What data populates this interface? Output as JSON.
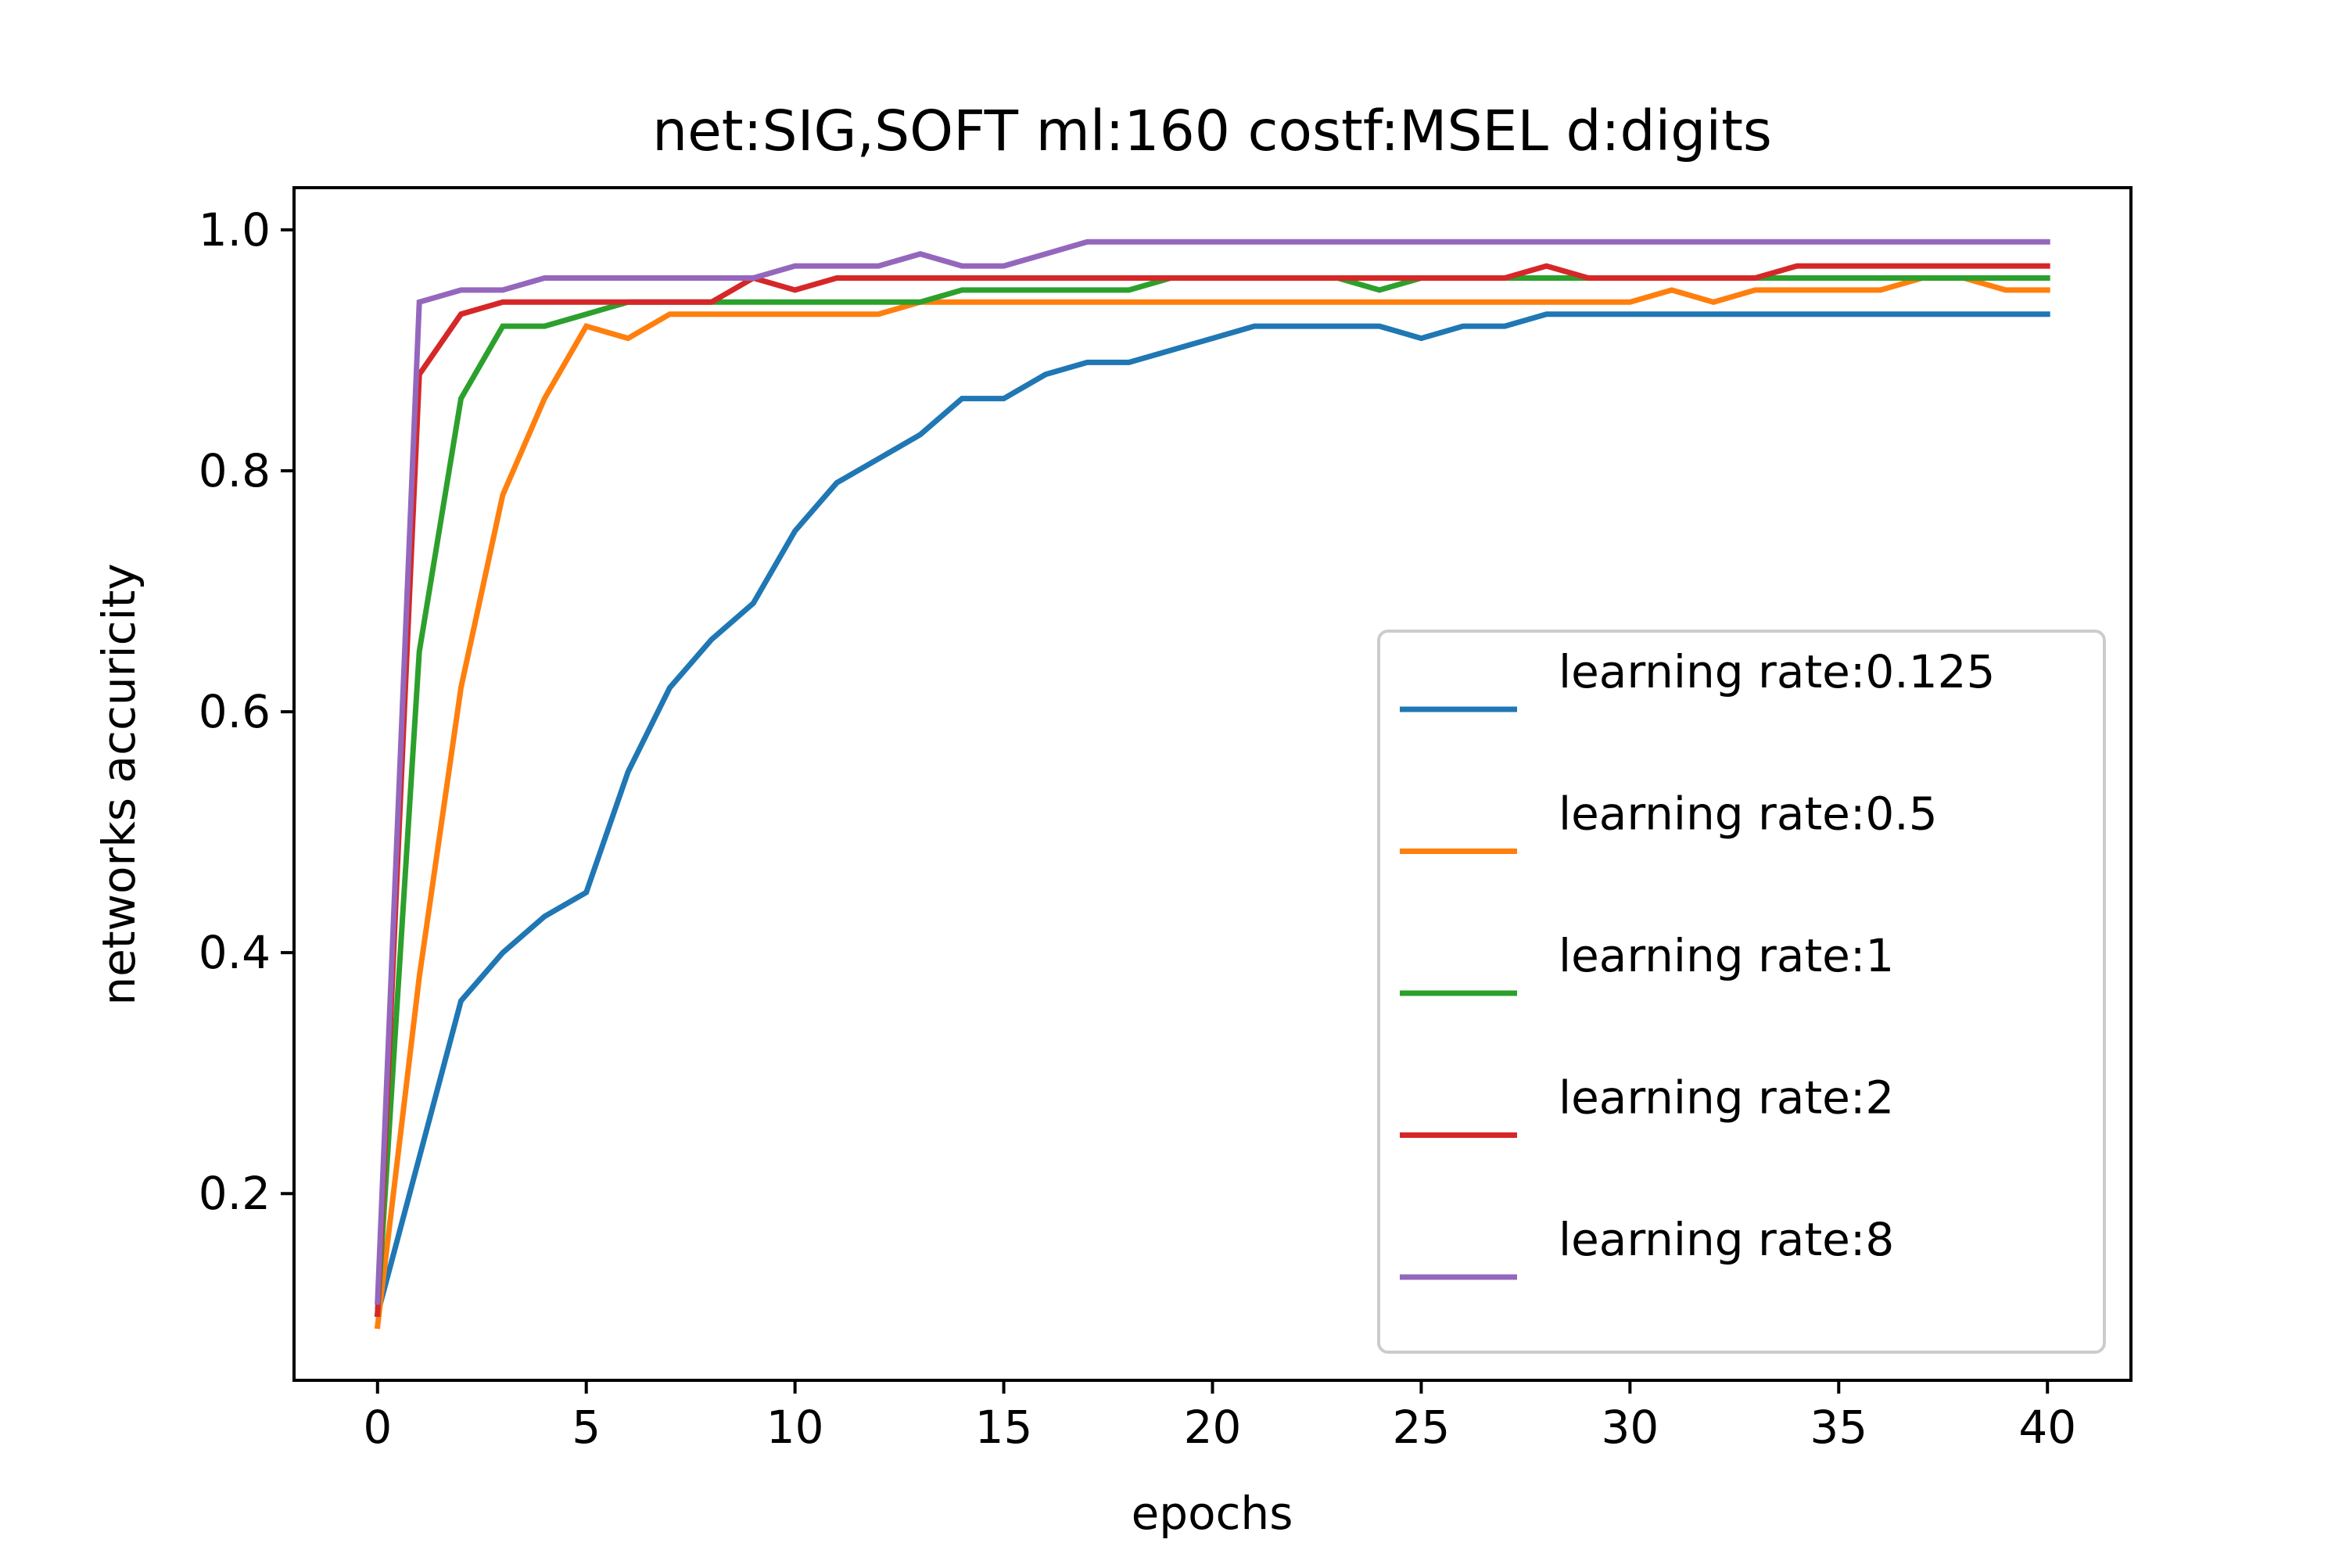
{
  "chart_data": {
    "type": "line",
    "title": "net:SIG,SOFT ml:160 costf:MSEL d:digits",
    "xlabel": "epochs",
    "ylabel": "networks accuricity",
    "xlim": [
      -2,
      42
    ],
    "ylim": [
      0.045,
      1.035
    ],
    "xticks": [
      0,
      5,
      10,
      15,
      20,
      25,
      30,
      35,
      40
    ],
    "yticks": [
      0.2,
      0.4,
      0.6,
      0.8,
      1.0
    ],
    "xtick_labels": [
      "0",
      "5",
      "10",
      "15",
      "20",
      "25",
      "30",
      "35",
      "40"
    ],
    "ytick_labels": [
      "0.2",
      "0.4",
      "0.6",
      "0.8",
      "1.0"
    ],
    "grid": false,
    "legend_position": "lower-right",
    "x": [
      0,
      1,
      2,
      3,
      4,
      5,
      6,
      7,
      8,
      9,
      10,
      11,
      12,
      13,
      14,
      15,
      16,
      17,
      18,
      19,
      20,
      21,
      22,
      23,
      24,
      25,
      26,
      27,
      28,
      29,
      30,
      31,
      32,
      33,
      34,
      35,
      36,
      37,
      38,
      39,
      40
    ],
    "series": [
      {
        "name": "learning rate:0.125",
        "color": "#1f77b4",
        "values": [
          0.1,
          0.23,
          0.36,
          0.4,
          0.43,
          0.45,
          0.55,
          0.62,
          0.66,
          0.69,
          0.75,
          0.79,
          0.81,
          0.83,
          0.86,
          0.86,
          0.88,
          0.89,
          0.89,
          0.9,
          0.91,
          0.92,
          0.92,
          0.92,
          0.92,
          0.91,
          0.92,
          0.92,
          0.93,
          0.93,
          0.93,
          0.93,
          0.93,
          0.93,
          0.93,
          0.93,
          0.93,
          0.93,
          0.93,
          0.93,
          0.93
        ]
      },
      {
        "name": "learning rate:0.5",
        "color": "#ff7f0e",
        "values": [
          0.09,
          0.38,
          0.62,
          0.78,
          0.86,
          0.92,
          0.91,
          0.93,
          0.93,
          0.93,
          0.93,
          0.93,
          0.93,
          0.94,
          0.94,
          0.94,
          0.94,
          0.94,
          0.94,
          0.94,
          0.94,
          0.94,
          0.94,
          0.94,
          0.94,
          0.94,
          0.94,
          0.94,
          0.94,
          0.94,
          0.94,
          0.95,
          0.94,
          0.95,
          0.95,
          0.95,
          0.95,
          0.96,
          0.96,
          0.95,
          0.95
        ]
      },
      {
        "name": "learning rate:1",
        "color": "#2ca02c",
        "values": [
          0.1,
          0.65,
          0.86,
          0.92,
          0.92,
          0.93,
          0.94,
          0.94,
          0.94,
          0.94,
          0.94,
          0.94,
          0.94,
          0.94,
          0.95,
          0.95,
          0.95,
          0.95,
          0.95,
          0.96,
          0.96,
          0.96,
          0.96,
          0.96,
          0.95,
          0.96,
          0.96,
          0.96,
          0.96,
          0.96,
          0.96,
          0.96,
          0.96,
          0.96,
          0.96,
          0.96,
          0.96,
          0.96,
          0.96,
          0.96,
          0.96
        ]
      },
      {
        "name": "learning rate:2",
        "color": "#d62728",
        "values": [
          0.1,
          0.88,
          0.93,
          0.94,
          0.94,
          0.94,
          0.94,
          0.94,
          0.94,
          0.96,
          0.95,
          0.96,
          0.96,
          0.96,
          0.96,
          0.96,
          0.96,
          0.96,
          0.96,
          0.96,
          0.96,
          0.96,
          0.96,
          0.96,
          0.96,
          0.96,
          0.96,
          0.96,
          0.97,
          0.96,
          0.96,
          0.96,
          0.96,
          0.96,
          0.97,
          0.97,
          0.97,
          0.97,
          0.97,
          0.97,
          0.97
        ]
      },
      {
        "name": "learning rate:8",
        "color": "#9467bd",
        "values": [
          0.11,
          0.94,
          0.95,
          0.95,
          0.96,
          0.96,
          0.96,
          0.96,
          0.96,
          0.96,
          0.97,
          0.97,
          0.97,
          0.98,
          0.97,
          0.97,
          0.98,
          0.99,
          0.99,
          0.99,
          0.99,
          0.99,
          0.99,
          0.99,
          0.99,
          0.99,
          0.99,
          0.99,
          0.99,
          0.99,
          0.99,
          0.99,
          0.99,
          0.99,
          0.99,
          0.99,
          0.99,
          0.99,
          0.99,
          0.99,
          0.99
        ]
      }
    ]
  }
}
